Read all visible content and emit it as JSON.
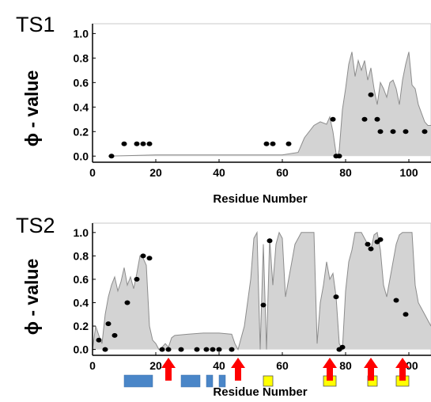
{
  "chart_data": [
    {
      "type": "area",
      "panel_label": "TS1",
      "xlabel": "Residue Number",
      "ylabel": "ϕ - value",
      "xlim": [
        0,
        107
      ],
      "ylim": [
        -0.05,
        1.08
      ],
      "xticks": [
        0,
        20,
        40,
        60,
        80,
        100
      ],
      "yticks": [
        0.0,
        0.2,
        0.4,
        0.6,
        0.8,
        1.0
      ],
      "ytick_labels": [
        "0.0",
        "0.2",
        "0.4",
        "0.6",
        "0.8",
        "1.0"
      ],
      "grid": false,
      "series": [
        {
          "kind": "area",
          "color": "#d3d3d3",
          "stroke": "#8c8c8c",
          "x": [
            5,
            20,
            40,
            60,
            65,
            67,
            70,
            72,
            74,
            75,
            76,
            77,
            77.5,
            78,
            79,
            80,
            81,
            82,
            83,
            84,
            85,
            86,
            87,
            88,
            89,
            90,
            91,
            92,
            93,
            94,
            95,
            96,
            97,
            98,
            99,
            100,
            101,
            102,
            103,
            104,
            105,
            106,
            107
          ],
          "y": [
            0.0,
            0.01,
            0.01,
            0.01,
            0.03,
            0.15,
            0.25,
            0.28,
            0.26,
            0.32,
            0.2,
            0.02,
            0.0,
            0.05,
            0.38,
            0.55,
            0.75,
            0.85,
            0.65,
            0.78,
            0.7,
            0.78,
            0.62,
            0.72,
            0.55,
            0.42,
            0.6,
            0.55,
            0.48,
            0.6,
            0.62,
            0.55,
            0.42,
            0.62,
            0.75,
            0.85,
            0.58,
            0.55,
            0.42,
            0.35,
            0.28,
            0.25,
            0.25
          ]
        },
        {
          "kind": "scatter",
          "color": "#000000",
          "x": [
            6,
            10,
            14,
            16,
            18,
            55,
            57,
            62,
            76,
            77,
            78,
            86,
            88,
            90,
            91,
            95,
            99,
            105
          ],
          "y": [
            0.0,
            0.1,
            0.1,
            0.1,
            0.1,
            0.1,
            0.1,
            0.1,
            0.3,
            0.0,
            0.0,
            0.3,
            0.5,
            0.3,
            0.2,
            0.2,
            0.2,
            0.2
          ]
        }
      ]
    },
    {
      "type": "area",
      "panel_label": "TS2",
      "xlabel": "Residue Number",
      "ylabel": "ϕ - value",
      "xlim": [
        0,
        107
      ],
      "ylim": [
        -0.05,
        1.08
      ],
      "xticks": [
        0,
        20,
        40,
        60,
        80,
        100
      ],
      "yticks": [
        0.0,
        0.2,
        0.4,
        0.6,
        0.8,
        1.0
      ],
      "ytick_labels": [
        "0.0",
        "0.2",
        "0.4",
        "0.6",
        "0.8",
        "1.0"
      ],
      "grid": false,
      "series": [
        {
          "kind": "area",
          "color": "#d3d3d3",
          "stroke": "#8c8c8c",
          "x": [
            0,
            1,
            2,
            3,
            4,
            5,
            6,
            7,
            8,
            9,
            10,
            11,
            12,
            13,
            14,
            15,
            16,
            17,
            18,
            19,
            20,
            21,
            22,
            23,
            24,
            25,
            26,
            30,
            35,
            40,
            44,
            45,
            46,
            47,
            48,
            49,
            50,
            51,
            52,
            53,
            54,
            55,
            56,
            57,
            58,
            59,
            60,
            61,
            62,
            63,
            64,
            65,
            66,
            67,
            70,
            71,
            72,
            73,
            74,
            75,
            76,
            77,
            78,
            79,
            80,
            81,
            82,
            83,
            84,
            85,
            86,
            87,
            88,
            89,
            90,
            91,
            92,
            93,
            94,
            95,
            96,
            97,
            98,
            99,
            100,
            101,
            102,
            103,
            104,
            105,
            106,
            107
          ],
          "y": [
            0.0,
            0.2,
            0.12,
            0.05,
            0.3,
            0.45,
            0.55,
            0.62,
            0.5,
            0.58,
            0.7,
            0.55,
            0.62,
            0.52,
            0.65,
            0.8,
            0.78,
            0.72,
            0.2,
            0.08,
            0.05,
            0.0,
            0.02,
            0.05,
            0.02,
            0.1,
            0.12,
            0.13,
            0.14,
            0.14,
            0.13,
            0.05,
            0.0,
            0.1,
            0.2,
            0.4,
            0.6,
            0.95,
            1.0,
            0.0,
            0.9,
            0.0,
            0.95,
            0.55,
            0.9,
            1.0,
            0.95,
            0.45,
            0.6,
            0.75,
            0.9,
            0.95,
            1.0,
            1.0,
            1.0,
            0.05,
            0.4,
            0.55,
            0.75,
            0.6,
            0.65,
            0.45,
            0.05,
            0.0,
            0.5,
            0.75,
            0.85,
            1.0,
            1.0,
            1.0,
            0.95,
            0.9,
            0.85,
            0.98,
            1.0,
            0.85,
            0.55,
            0.45,
            0.6,
            0.75,
            0.9,
            0.98,
            1.0,
            1.0,
            1.0,
            1.0,
            0.55,
            0.4,
            0.35,
            0.3,
            0.25,
            0.2
          ]
        },
        {
          "kind": "scatter",
          "color": "#000000",
          "x": [
            2,
            4,
            5,
            7,
            11,
            14,
            16,
            18,
            22,
            24,
            28,
            33,
            36,
            38,
            40,
            44,
            54,
            56,
            77,
            78,
            79,
            87,
            88,
            90,
            91,
            96,
            99
          ],
          "y": [
            0.08,
            0.0,
            0.22,
            0.12,
            0.4,
            0.6,
            0.8,
            0.78,
            0.0,
            0.0,
            0.0,
            0.0,
            0.0,
            0.0,
            0.0,
            0.0,
            0.38,
            0.93,
            0.45,
            0.0,
            0.02,
            0.9,
            0.86,
            0.92,
            0.94,
            0.42,
            0.3
          ]
        }
      ],
      "secondary_structure": [
        {
          "type": "helix",
          "color": "#4a86c8",
          "start": 10,
          "end": 19
        },
        {
          "type": "helix",
          "color": "#4a86c8",
          "start": 28,
          "end": 34
        },
        {
          "type": "helix",
          "color": "#4a86c8",
          "start": 36,
          "end": 38
        },
        {
          "type": "helix",
          "color": "#4a86c8",
          "start": 40,
          "end": 42
        },
        {
          "type": "strand",
          "color": "#ffff00",
          "start": 54,
          "end": 57
        },
        {
          "type": "strand",
          "color": "#ffff00",
          "start": 73,
          "end": 77
        },
        {
          "type": "strand",
          "color": "#ffff00",
          "start": 87,
          "end": 90
        },
        {
          "type": "strand",
          "color": "#ffff00",
          "start": 96,
          "end": 100
        }
      ],
      "arrows": {
        "color": "#ff0000",
        "x": [
          24,
          46,
          75,
          88,
          98
        ]
      }
    }
  ]
}
